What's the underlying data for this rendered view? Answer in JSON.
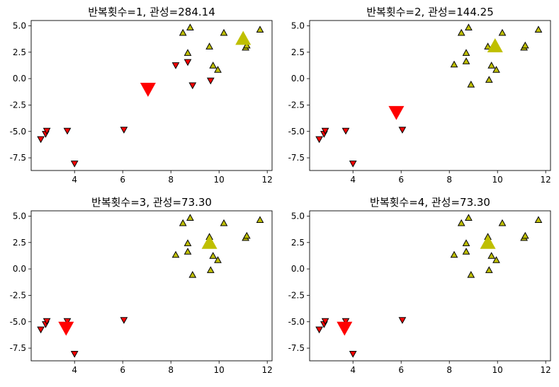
{
  "colors": {
    "cluster0": "#ff0000",
    "cluster1": "#bfbf00",
    "edge": "#000000"
  },
  "chart_data": [
    {
      "type": "scatter",
      "title": "반복횟수=1, 관성=284.14",
      "xlim": [
        2.2,
        12.2
      ],
      "ylim": [
        -8.7,
        5.5
      ],
      "xticks": [
        4,
        6,
        8,
        10,
        12
      ],
      "yticks": [
        5.0,
        2.5,
        0.0,
        -2.5,
        -5.0,
        -7.5
      ],
      "yticklabels": [
        "5.0",
        "2.5",
        "0.0",
        "-2.5",
        "-5.0",
        "-7.5"
      ],
      "grid": false,
      "points": [
        {
          "x": 2.6,
          "y": -5.7,
          "cluster": 0
        },
        {
          "x": 2.8,
          "y": -5.2,
          "cluster": 0
        },
        {
          "x": 2.85,
          "y": -4.9,
          "cluster": 0
        },
        {
          "x": 3.7,
          "y": -4.9,
          "cluster": 0
        },
        {
          "x": 4.0,
          "y": -8.0,
          "cluster": 0
        },
        {
          "x": 6.05,
          "y": -4.8,
          "cluster": 0
        },
        {
          "x": 8.2,
          "y": 1.3,
          "cluster": 0
        },
        {
          "x": 8.7,
          "y": 1.6,
          "cluster": 0
        },
        {
          "x": 8.9,
          "y": -0.6,
          "cluster": 0
        },
        {
          "x": 9.65,
          "y": -0.15,
          "cluster": 0
        },
        {
          "x": 8.5,
          "y": 4.3,
          "cluster": 1
        },
        {
          "x": 8.8,
          "y": 4.8,
          "cluster": 1
        },
        {
          "x": 8.7,
          "y": 2.4,
          "cluster": 1
        },
        {
          "x": 9.6,
          "y": 3.0,
          "cluster": 1
        },
        {
          "x": 9.75,
          "y": 1.2,
          "cluster": 1
        },
        {
          "x": 9.95,
          "y": 0.8,
          "cluster": 1
        },
        {
          "x": 10.2,
          "y": 4.3,
          "cluster": 1
        },
        {
          "x": 11.1,
          "y": 2.9,
          "cluster": 1
        },
        {
          "x": 11.15,
          "y": 3.1,
          "cluster": 1
        },
        {
          "x": 11.7,
          "y": 4.6,
          "cluster": 1
        }
      ],
      "centers": [
        {
          "x": 7.05,
          "y": -0.9,
          "cluster": 0
        },
        {
          "x": 11.0,
          "y": 3.7,
          "cluster": 1
        }
      ]
    },
    {
      "type": "scatter",
      "title": "반복횟수=2, 관성=144.25",
      "xlim": [
        2.2,
        12.2
      ],
      "ylim": [
        -8.7,
        5.5
      ],
      "xticks": [
        4,
        6,
        8,
        10,
        12
      ],
      "yticks": [
        5.0,
        2.5,
        0.0,
        -2.5,
        -5.0,
        -7.5
      ],
      "yticklabels": [
        "5.0",
        "2.5",
        "0.0",
        "-2.5",
        "-5.0",
        "-7.5"
      ],
      "grid": false,
      "points": [
        {
          "x": 2.6,
          "y": -5.7,
          "cluster": 0
        },
        {
          "x": 2.8,
          "y": -5.2,
          "cluster": 0
        },
        {
          "x": 2.85,
          "y": -4.9,
          "cluster": 0
        },
        {
          "x": 3.7,
          "y": -4.9,
          "cluster": 0
        },
        {
          "x": 4.0,
          "y": -8.0,
          "cluster": 0
        },
        {
          "x": 6.05,
          "y": -4.8,
          "cluster": 0
        },
        {
          "x": 8.2,
          "y": 1.3,
          "cluster": 1
        },
        {
          "x": 8.7,
          "y": 1.6,
          "cluster": 1
        },
        {
          "x": 8.9,
          "y": -0.6,
          "cluster": 1
        },
        {
          "x": 9.65,
          "y": -0.15,
          "cluster": 1
        },
        {
          "x": 8.5,
          "y": 4.3,
          "cluster": 1
        },
        {
          "x": 8.8,
          "y": 4.8,
          "cluster": 1
        },
        {
          "x": 8.7,
          "y": 2.4,
          "cluster": 1
        },
        {
          "x": 9.6,
          "y": 3.0,
          "cluster": 1
        },
        {
          "x": 9.75,
          "y": 1.2,
          "cluster": 1
        },
        {
          "x": 9.95,
          "y": 0.8,
          "cluster": 1
        },
        {
          "x": 10.2,
          "y": 4.3,
          "cluster": 1
        },
        {
          "x": 11.1,
          "y": 2.9,
          "cluster": 1
        },
        {
          "x": 11.15,
          "y": 3.1,
          "cluster": 1
        },
        {
          "x": 11.7,
          "y": 4.6,
          "cluster": 1
        }
      ],
      "centers": [
        {
          "x": 5.8,
          "y": -3.1,
          "cluster": 0
        },
        {
          "x": 9.9,
          "y": 3.0,
          "cluster": 1
        }
      ]
    },
    {
      "type": "scatter",
      "title": "반복횟수=3, 관성=73.30",
      "xlim": [
        2.2,
        12.2
      ],
      "ylim": [
        -8.7,
        5.5
      ],
      "xticks": [
        4,
        6,
        8,
        10,
        12
      ],
      "yticks": [
        5.0,
        2.5,
        0.0,
        -2.5,
        -5.0,
        -7.5
      ],
      "yticklabels": [
        "5.0",
        "2.5",
        "0.0",
        "-2.5",
        "-5.0",
        "-7.5"
      ],
      "grid": false,
      "points": [
        {
          "x": 2.6,
          "y": -5.7,
          "cluster": 0
        },
        {
          "x": 2.8,
          "y": -5.2,
          "cluster": 0
        },
        {
          "x": 2.85,
          "y": -4.9,
          "cluster": 0
        },
        {
          "x": 3.7,
          "y": -4.9,
          "cluster": 0
        },
        {
          "x": 4.0,
          "y": -8.0,
          "cluster": 0
        },
        {
          "x": 6.05,
          "y": -4.8,
          "cluster": 0
        },
        {
          "x": 8.2,
          "y": 1.3,
          "cluster": 1
        },
        {
          "x": 8.7,
          "y": 1.6,
          "cluster": 1
        },
        {
          "x": 8.9,
          "y": -0.6,
          "cluster": 1
        },
        {
          "x": 9.65,
          "y": -0.15,
          "cluster": 1
        },
        {
          "x": 8.5,
          "y": 4.3,
          "cluster": 1
        },
        {
          "x": 8.8,
          "y": 4.8,
          "cluster": 1
        },
        {
          "x": 8.7,
          "y": 2.4,
          "cluster": 1
        },
        {
          "x": 9.6,
          "y": 3.0,
          "cluster": 1
        },
        {
          "x": 9.75,
          "y": 1.2,
          "cluster": 1
        },
        {
          "x": 9.95,
          "y": 0.8,
          "cluster": 1
        },
        {
          "x": 10.2,
          "y": 4.3,
          "cluster": 1
        },
        {
          "x": 11.1,
          "y": 2.9,
          "cluster": 1
        },
        {
          "x": 11.15,
          "y": 3.1,
          "cluster": 1
        },
        {
          "x": 11.7,
          "y": 4.6,
          "cluster": 1
        }
      ],
      "centers": [
        {
          "x": 3.65,
          "y": -5.5,
          "cluster": 0
        },
        {
          "x": 9.6,
          "y": 2.4,
          "cluster": 1
        }
      ]
    },
    {
      "type": "scatter",
      "title": "반복횟수=4, 관성=73.30",
      "xlim": [
        2.2,
        12.2
      ],
      "ylim": [
        -8.7,
        5.5
      ],
      "xticks": [
        4,
        6,
        8,
        10,
        12
      ],
      "yticks": [
        5.0,
        2.5,
        0.0,
        -2.5,
        -5.0,
        -7.5
      ],
      "yticklabels": [
        "5.0",
        "2.5",
        "0.0",
        "-2.5",
        "-5.0",
        "-7.5"
      ],
      "grid": false,
      "points": [
        {
          "x": 2.6,
          "y": -5.7,
          "cluster": 0
        },
        {
          "x": 2.8,
          "y": -5.2,
          "cluster": 0
        },
        {
          "x": 2.85,
          "y": -4.9,
          "cluster": 0
        },
        {
          "x": 3.7,
          "y": -4.9,
          "cluster": 0
        },
        {
          "x": 4.0,
          "y": -8.0,
          "cluster": 0
        },
        {
          "x": 6.05,
          "y": -4.8,
          "cluster": 0
        },
        {
          "x": 8.2,
          "y": 1.3,
          "cluster": 1
        },
        {
          "x": 8.7,
          "y": 1.6,
          "cluster": 1
        },
        {
          "x": 8.9,
          "y": -0.6,
          "cluster": 1
        },
        {
          "x": 9.65,
          "y": -0.15,
          "cluster": 1
        },
        {
          "x": 8.5,
          "y": 4.3,
          "cluster": 1
        },
        {
          "x": 8.8,
          "y": 4.8,
          "cluster": 1
        },
        {
          "x": 8.7,
          "y": 2.4,
          "cluster": 1
        },
        {
          "x": 9.6,
          "y": 3.0,
          "cluster": 1
        },
        {
          "x": 9.75,
          "y": 1.2,
          "cluster": 1
        },
        {
          "x": 9.95,
          "y": 0.8,
          "cluster": 1
        },
        {
          "x": 10.2,
          "y": 4.3,
          "cluster": 1
        },
        {
          "x": 11.1,
          "y": 2.9,
          "cluster": 1
        },
        {
          "x": 11.15,
          "y": 3.1,
          "cluster": 1
        },
        {
          "x": 11.7,
          "y": 4.6,
          "cluster": 1
        }
      ],
      "centers": [
        {
          "x": 3.65,
          "y": -5.5,
          "cluster": 0
        },
        {
          "x": 9.6,
          "y": 2.4,
          "cluster": 1
        }
      ]
    }
  ]
}
